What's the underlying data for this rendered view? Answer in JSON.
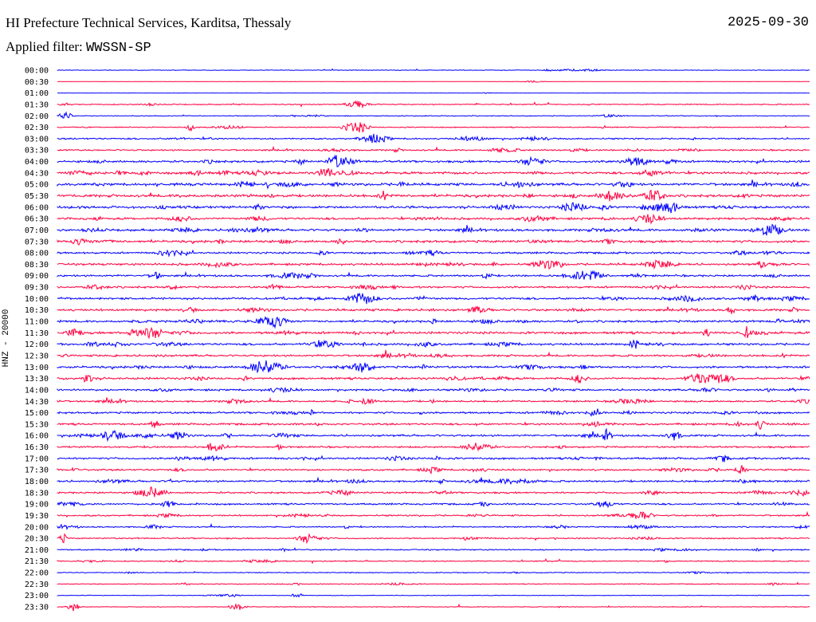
{
  "header": {
    "title": "HI Prefecture Technical Services, Karditsa, Thessaly",
    "date": "2025-09-30",
    "filter_label": "Applied filter:",
    "filter_value": "WWSSN-SP"
  },
  "chart_data": {
    "type": "line",
    "title": "HI Prefecture Technical Services, Karditsa, Thessaly",
    "ylabel": "HNZ - 20000",
    "row_interval_minutes": 30,
    "colors": [
      "#0000ff",
      "#ff0040"
    ],
    "rows": [
      "00:00",
      "00:30",
      "01:00",
      "01:30",
      "02:00",
      "02:30",
      "03:00",
      "03:30",
      "04:00",
      "04:30",
      "05:00",
      "05:30",
      "06:00",
      "06:30",
      "07:00",
      "07:30",
      "08:00",
      "08:30",
      "09:00",
      "09:30",
      "10:00",
      "10:30",
      "11:00",
      "11:30",
      "12:00",
      "12:30",
      "13:00",
      "13:30",
      "14:00",
      "14:30",
      "15:00",
      "15:30",
      "16:00",
      "16:30",
      "17:00",
      "17:30",
      "18:00",
      "18:30",
      "19:00",
      "19:30",
      "20:00",
      "20:30",
      "21:00",
      "21:30",
      "22:00",
      "22:30",
      "23:00",
      "23:30"
    ],
    "activity_level": [
      0.15,
      0.05,
      0.05,
      0.25,
      0.2,
      0.25,
      0.35,
      0.35,
      0.5,
      0.55,
      0.6,
      0.6,
      0.55,
      0.5,
      0.55,
      0.55,
      0.45,
      0.5,
      0.45,
      0.45,
      0.5,
      0.5,
      0.5,
      0.55,
      0.5,
      0.45,
      0.5,
      0.5,
      0.45,
      0.4,
      0.45,
      0.45,
      0.45,
      0.4,
      0.45,
      0.4,
      0.45,
      0.4,
      0.4,
      0.35,
      0.3,
      0.3,
      0.3,
      0.25,
      0.2,
      0.2,
      0.15,
      0.15
    ]
  }
}
